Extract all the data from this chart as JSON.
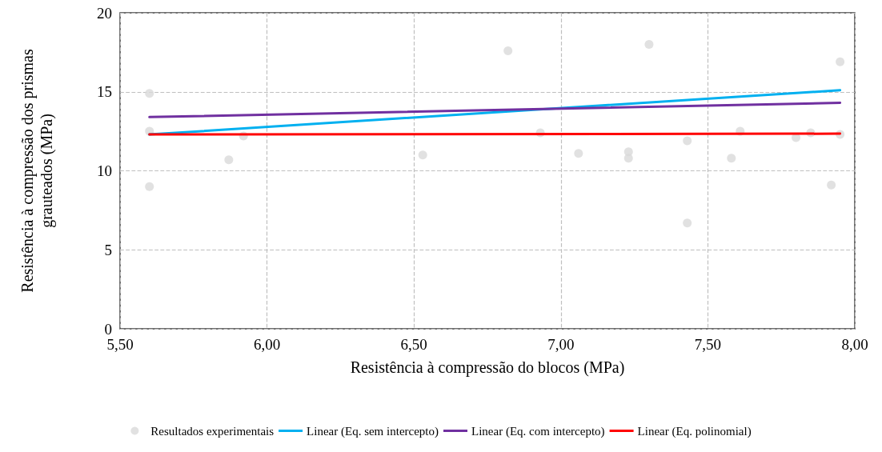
{
  "chart_data": {
    "type": "scatter",
    "xlabel": "Resistência à compressão do blocos (MPa)",
    "ylabel": "Resistência à compressão dos prismas grauteados (MPa)",
    "xlim": [
      5.5,
      8.0
    ],
    "xticks": [
      {
        "value": 5.5,
        "label": "5,50"
      },
      {
        "value": 6.0,
        "label": "6,00"
      },
      {
        "value": 6.5,
        "label": "6,50"
      },
      {
        "value": 7.0,
        "label": "7,00"
      },
      {
        "value": 7.5,
        "label": "7,50"
      },
      {
        "value": 8.0,
        "label": "8,00"
      }
    ],
    "ylim": [
      0,
      20
    ],
    "yticks": [
      0,
      5,
      10,
      15,
      20
    ],
    "grid": true,
    "legend": "bottom",
    "series": [
      {
        "name": "Resultados experimentais",
        "type": "scatter",
        "marker": "circle",
        "color": "#d9d9d9",
        "x": [
          5.6,
          5.6,
          5.6,
          5.87,
          5.92,
          6.53,
          6.82,
          6.93,
          7.06,
          7.23,
          7.23,
          7.3,
          7.43,
          7.43,
          7.58,
          7.61,
          7.8,
          7.85,
          7.92,
          7.95,
          7.95
        ],
        "values": [
          14.9,
          12.5,
          9.0,
          10.7,
          12.2,
          11.0,
          17.6,
          12.4,
          11.1,
          11.2,
          10.8,
          18.0,
          11.9,
          6.7,
          10.8,
          12.5,
          12.1,
          12.4,
          9.1,
          16.9,
          12.3
        ]
      },
      {
        "name": "Linear (Eq. sem intercepto)",
        "type": "line",
        "marker": "none",
        "line_style": "solid",
        "color": "#00b0f0",
        "x": [
          5.6,
          7.95
        ],
        "values": [
          12.3,
          15.1
        ]
      },
      {
        "name": "Linear (Eq. com intercepto)",
        "type": "line",
        "marker": "none",
        "line_style": "solid",
        "color": "#7030a0",
        "x": [
          5.6,
          7.95
        ],
        "values": [
          13.4,
          14.3
        ]
      },
      {
        "name": "Linear (Eq. polinomial)",
        "type": "line",
        "marker": "none",
        "line_style": "solid",
        "color": "#ff0000",
        "x": [
          5.6,
          7.95
        ],
        "values": [
          12.3,
          12.35
        ]
      }
    ]
  }
}
